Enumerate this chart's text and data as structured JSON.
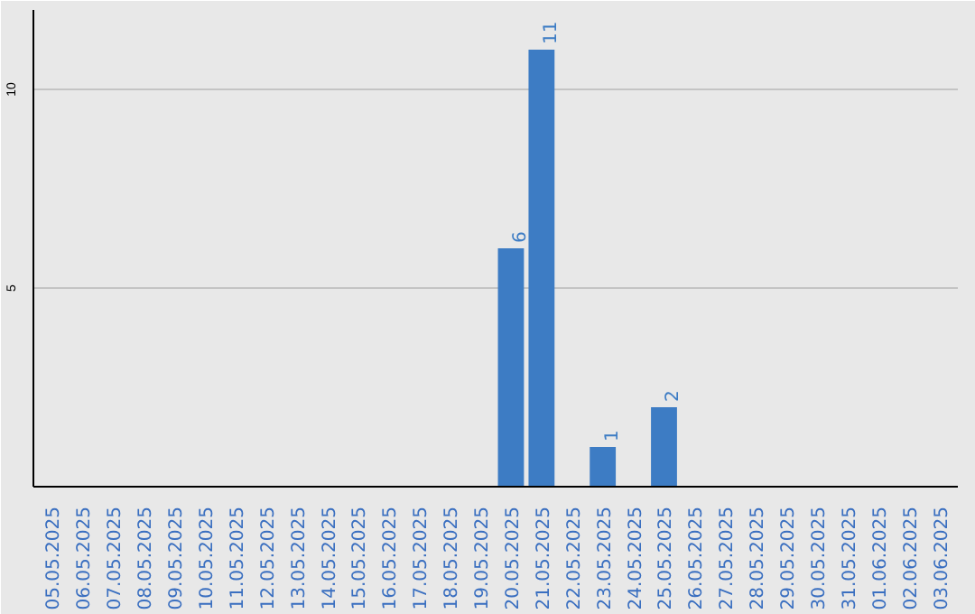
{
  "chart_data": {
    "type": "bar",
    "categories": [
      "05.05.2025",
      "06.05.2025",
      "07.05.2025",
      "08.05.2025",
      "09.05.2025",
      "10.05.2025",
      "11.05.2025",
      "12.05.2025",
      "13.05.2025",
      "14.05.2025",
      "15.05.2025",
      "16.05.2025",
      "17.05.2025",
      "18.05.2025",
      "19.05.2025",
      "20.05.2025",
      "21.05.2025",
      "22.05.2025",
      "23.05.2025",
      "24.05.2025",
      "25.05.2025",
      "26.05.2025",
      "27.05.2025",
      "28.05.2025",
      "29.05.2025",
      "30.05.2025",
      "31.05.2025",
      "01.06.2025",
      "02.06.2025",
      "03.06.2025"
    ],
    "values": [
      0,
      0,
      0,
      0,
      0,
      0,
      0,
      0,
      0,
      0,
      0,
      0,
      0,
      0,
      0,
      6,
      11,
      0,
      1,
      0,
      2,
      0,
      0,
      0,
      0,
      0,
      0,
      0,
      0,
      0
    ],
    "value_labels": [
      null,
      null,
      null,
      null,
      null,
      null,
      null,
      null,
      null,
      null,
      null,
      null,
      null,
      null,
      null,
      "6",
      "11",
      null,
      "1",
      null,
      "2",
      null,
      null,
      null,
      null,
      null,
      null,
      null,
      null,
      null
    ],
    "color": "#3d7cc4",
    "ylim": [
      0,
      12
    ],
    "yticks": [
      5,
      10
    ],
    "grid": "y"
  }
}
